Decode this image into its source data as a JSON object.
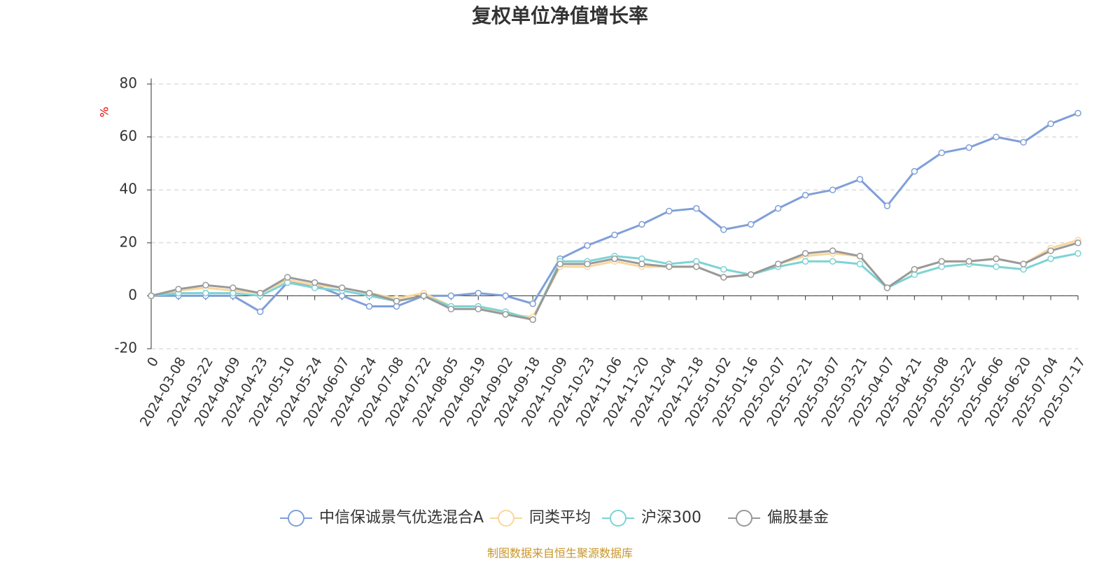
{
  "chart_data": {
    "type": "line",
    "title": "复权单位净值增长率",
    "y_label": "%",
    "source": "制图数据来自恒生聚源数据库",
    "categories": [
      "0",
      "2024-03-08",
      "2024-03-22",
      "2024-04-09",
      "2024-04-23",
      "2024-05-10",
      "2024-05-24",
      "2024-06-07",
      "2024-06-24",
      "2024-07-08",
      "2024-07-22",
      "2024-08-05",
      "2024-08-19",
      "2024-09-02",
      "2024-09-18",
      "2024-10-09",
      "2024-10-23",
      "2024-11-06",
      "2024-11-20",
      "2024-12-04",
      "2024-12-18",
      "2025-01-02",
      "2025-01-16",
      "2025-02-07",
      "2025-02-21",
      "2025-03-07",
      "2025-03-21",
      "2025-04-07",
      "2025-04-21",
      "2025-05-08",
      "2025-05-22",
      "2025-06-06",
      "2025-06-20",
      "2025-07-04",
      "2025-07-17"
    ],
    "series": [
      {
        "name": "中信保诚景气优选混合A",
        "color": "#7f9fd8",
        "values": [
          0,
          0,
          0,
          0,
          -6,
          5,
          4,
          0,
          -4,
          -4,
          0,
          0,
          1,
          0,
          -3,
          14,
          19,
          23,
          27,
          32,
          33,
          25,
          27,
          33,
          38,
          40,
          44,
          34,
          47,
          54,
          56,
          60,
          58,
          65,
          69
        ]
      },
      {
        "name": "同类平均",
        "color": "#f9d79b",
        "values": [
          0,
          2,
          3,
          2,
          1,
          6,
          4,
          3,
          1,
          -1,
          1,
          -4,
          -4,
          -7,
          -8,
          11,
          11,
          13,
          11,
          11,
          11,
          7,
          8,
          12,
          15,
          16,
          15,
          3,
          10,
          13,
          13,
          14,
          12,
          18,
          21
        ]
      },
      {
        "name": "沪深300",
        "color": "#7dd3d5",
        "values": [
          0,
          1,
          1,
          1,
          0,
          5,
          3,
          2,
          0,
          -2,
          0,
          -4,
          -4,
          -6,
          -9,
          13,
          13,
          15,
          14,
          12,
          13,
          10,
          8,
          11,
          13,
          13,
          12,
          3,
          8,
          11,
          12,
          11,
          10,
          14,
          16
        ]
      },
      {
        "name": "偏股基金",
        "color": "#999999",
        "values": [
          0,
          2.5,
          4,
          3,
          1,
          7,
          5,
          3,
          1,
          -2,
          0,
          -5,
          -5,
          -7,
          -9,
          12,
          12,
          14,
          12,
          11,
          11,
          7,
          8,
          12,
          16,
          17,
          15,
          3,
          10,
          13,
          13,
          14,
          12,
          17,
          20
        ]
      }
    ],
    "ylim": [
      -20,
      80
    ],
    "yticks": [
      -20,
      0,
      20,
      40,
      60,
      80
    ],
    "grid": true
  }
}
